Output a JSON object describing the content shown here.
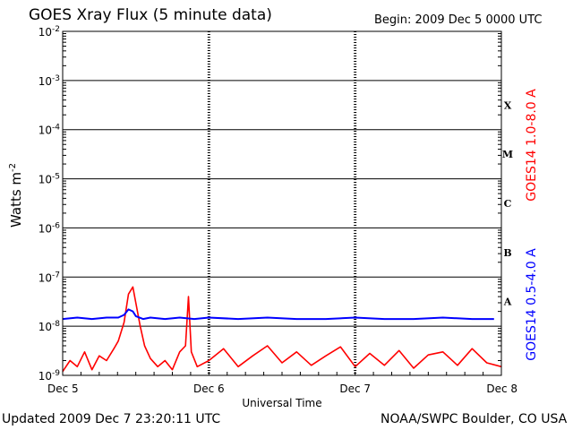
{
  "chart_data": {
    "type": "line",
    "title": "GOES Xray Flux (5 minute data)",
    "begin_label": "Begin:  2009 Dec 5 0000 UTC",
    "updated_label": "Updated 2009 Dec  7 23:20:11 UTC",
    "credit_label": "NOAA/SWPC Boulder, CO USA",
    "xlabel": "Universal Time",
    "ylabel_base": "Watts m",
    "ylabel_exp": "-2",
    "y_scale": "log",
    "ylim": [
      1e-09,
      0.01
    ],
    "x_ticks": [
      "Dec 5",
      "Dec 6",
      "Dec 7",
      "Dec 8"
    ],
    "y_ticks": [
      {
        "base": "10",
        "exp": "-2"
      },
      {
        "base": "10",
        "exp": "-3"
      },
      {
        "base": "10",
        "exp": "-4"
      },
      {
        "base": "10",
        "exp": "-5"
      },
      {
        "base": "10",
        "exp": "-6"
      },
      {
        "base": "10",
        "exp": "-7"
      },
      {
        "base": "10",
        "exp": "-8"
      },
      {
        "base": "10",
        "exp": "-9"
      }
    ],
    "flare_classes": [
      "X",
      "M",
      "C",
      "B",
      "A"
    ],
    "grid": true,
    "series": [
      {
        "name": "GOES14 1.0-8.0 A",
        "color": "#ff0000",
        "days": [
          0.0,
          0.05,
          0.1,
          0.15,
          0.2,
          0.25,
          0.3,
          0.35,
          0.38,
          0.42,
          0.45,
          0.48,
          0.5,
          0.53,
          0.56,
          0.6,
          0.65,
          0.7,
          0.75,
          0.8,
          0.84,
          0.86,
          0.88,
          0.92,
          1.0,
          1.1,
          1.2,
          1.3,
          1.4,
          1.5,
          1.6,
          1.7,
          1.8,
          1.9,
          2.0,
          2.1,
          2.2,
          2.3,
          2.4,
          2.5,
          2.6,
          2.7,
          2.8,
          2.9,
          3.0
        ],
        "values": [
          1.2e-09,
          2e-09,
          1.5e-09,
          3e-09,
          1.3e-09,
          2.5e-09,
          2e-09,
          3.5e-09,
          5e-09,
          1.2e-08,
          4.5e-08,
          6.3e-08,
          3e-08,
          1e-08,
          4e-09,
          2.2e-09,
          1.5e-09,
          2e-09,
          1.3e-09,
          3e-09,
          4e-09,
          4e-08,
          3e-09,
          1.5e-09,
          2e-09,
          3.5e-09,
          1.5e-09,
          2.5e-09,
          4e-09,
          1.8e-09,
          3e-09,
          1.6e-09,
          2.5e-09,
          3.8e-09,
          1.5e-09,
          2.8e-09,
          1.6e-09,
          3.2e-09,
          1.4e-09,
          2.6e-09,
          3e-09,
          1.6e-09,
          3.5e-09,
          1.8e-09,
          1.5e-09
        ]
      },
      {
        "name": "GOES14 0.5-4.0 A",
        "color": "#0000ff",
        "days": [
          0.0,
          0.1,
          0.2,
          0.3,
          0.38,
          0.42,
          0.45,
          0.48,
          0.5,
          0.55,
          0.6,
          0.7,
          0.8,
          0.9,
          1.0,
          1.2,
          1.4,
          1.6,
          1.8,
          2.0,
          2.2,
          2.4,
          2.6,
          2.8,
          2.95
        ],
        "values": [
          1.4e-08,
          1.5e-08,
          1.4e-08,
          1.5e-08,
          1.5e-08,
          1.7e-08,
          2.2e-08,
          2e-08,
          1.6e-08,
          1.4e-08,
          1.5e-08,
          1.4e-08,
          1.5e-08,
          1.4e-08,
          1.5e-08,
          1.4e-08,
          1.5e-08,
          1.4e-08,
          1.4e-08,
          1.5e-08,
          1.4e-08,
          1.4e-08,
          1.5e-08,
          1.4e-08,
          1.4e-08
        ]
      }
    ]
  }
}
